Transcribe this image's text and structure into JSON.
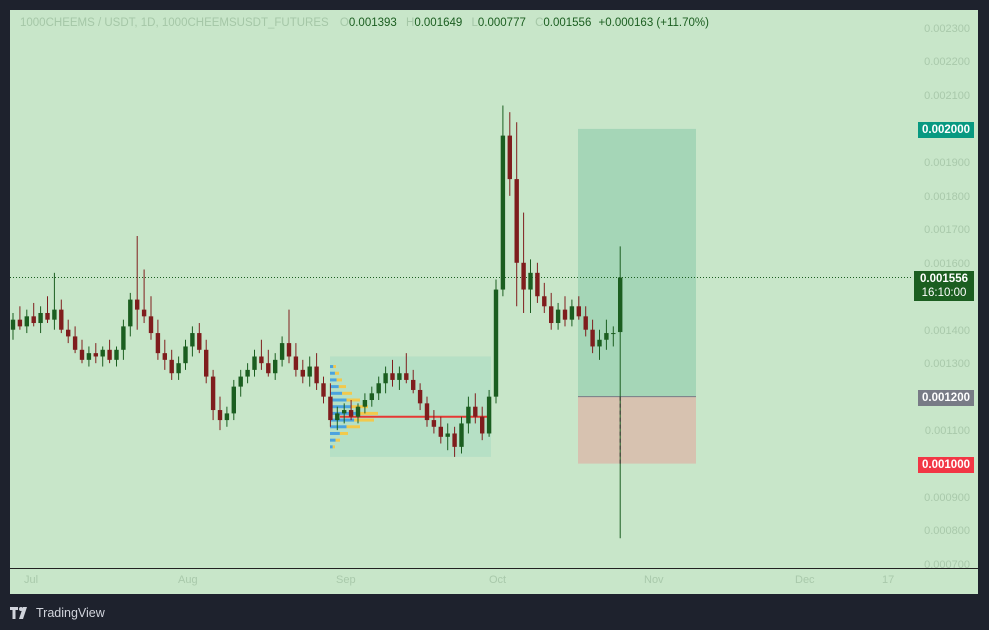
{
  "legend": {
    "symbol": "1000CHEEMS / USDT, 1D, 1000CHEEMSUSDT_FUTURES",
    "o_label": "O",
    "o": "0.001393",
    "h_label": "H",
    "h": "0.001649",
    "l_label": "L",
    "l": "0.000777",
    "c_label": "C",
    "c": "0.001556",
    "change": "+0.000163 (+11.70%)"
  },
  "price_axis": {
    "ticks": [
      "0.002300",
      "0.002200",
      "0.002100",
      "0.001900",
      "0.001800",
      "0.001700",
      "0.001600",
      "0.001400",
      "0.001300",
      "0.001100",
      "0.000900",
      "0.000800",
      "0.000700"
    ]
  },
  "tags": {
    "target": {
      "text": "0.002000",
      "color": "#089981"
    },
    "last": {
      "price": "0.001556",
      "countdown": "16:10:00",
      "color": "#1b5e20"
    },
    "entry": {
      "text": "0.001200",
      "color": "#787b86"
    },
    "stop": {
      "text": "0.001000",
      "color": "#f23645"
    }
  },
  "time_axis": {
    "labels": [
      "Jul",
      "Aug",
      "Sep",
      "Oct",
      "Nov",
      "Dec",
      "17"
    ]
  },
  "footer": {
    "brand": "TradingView"
  },
  "colors": {
    "background": "#c8e6c9",
    "up": "#1b5e20",
    "down": "#7f1d1d",
    "profit_zone": "#a5d6b7",
    "loss_zone": "#d7c2b0",
    "volume_profile_up": "#f2c94c",
    "volume_profile_down": "#4aa3df",
    "poc_line": "#e53935"
  },
  "chart_data": {
    "type": "candlestick",
    "title": "1000CHEEMS / USDT, 1D",
    "ylim": [
      0.0007,
      0.00235
    ],
    "last_price": 0.001556,
    "position_tool": {
      "entry": 0.0012,
      "target": 0.002,
      "stop": 0.001
    },
    "volume_profile_poc": 0.00114,
    "candles": [
      [
        0.0014,
        0.00145,
        0.00137,
        0.00143
      ],
      [
        0.00143,
        0.00147,
        0.0014,
        0.00141
      ],
      [
        0.00141,
        0.00146,
        0.00139,
        0.00144
      ],
      [
        0.00144,
        0.00148,
        0.00141,
        0.00142
      ],
      [
        0.00142,
        0.00147,
        0.00139,
        0.00145
      ],
      [
        0.00145,
        0.0015,
        0.00142,
        0.00143
      ],
      [
        0.00143,
        0.00157,
        0.0014,
        0.00146
      ],
      [
        0.00146,
        0.00149,
        0.00139,
        0.0014
      ],
      [
        0.0014,
        0.00143,
        0.00136,
        0.00138
      ],
      [
        0.00138,
        0.00141,
        0.00133,
        0.00134
      ],
      [
        0.00134,
        0.00137,
        0.0013,
        0.00131
      ],
      [
        0.00131,
        0.00135,
        0.00129,
        0.00133
      ],
      [
        0.00133,
        0.00136,
        0.0013,
        0.00132
      ],
      [
        0.00132,
        0.00135,
        0.00129,
        0.00134
      ],
      [
        0.00134,
        0.00137,
        0.0013,
        0.00131
      ],
      [
        0.00131,
        0.00135,
        0.00129,
        0.00134
      ],
      [
        0.00134,
        0.00143,
        0.00131,
        0.00141
      ],
      [
        0.00141,
        0.00151,
        0.00138,
        0.00149
      ],
      [
        0.00149,
        0.00168,
        0.0014,
        0.00146
      ],
      [
        0.00146,
        0.00158,
        0.00142,
        0.00144
      ],
      [
        0.00144,
        0.0015,
        0.00137,
        0.00139
      ],
      [
        0.00139,
        0.00143,
        0.00131,
        0.00133
      ],
      [
        0.00133,
        0.00137,
        0.00128,
        0.00131
      ],
      [
        0.00131,
        0.00134,
        0.00125,
        0.00127
      ],
      [
        0.00127,
        0.00132,
        0.00125,
        0.0013
      ],
      [
        0.0013,
        0.00137,
        0.00128,
        0.00135
      ],
      [
        0.00135,
        0.00141,
        0.00132,
        0.00139
      ],
      [
        0.00139,
        0.00142,
        0.00133,
        0.00134
      ],
      [
        0.00134,
        0.00137,
        0.00124,
        0.00126
      ],
      [
        0.00126,
        0.00128,
        0.00113,
        0.00116
      ],
      [
        0.00116,
        0.0012,
        0.0011,
        0.00113
      ],
      [
        0.00113,
        0.00117,
        0.00111,
        0.00115
      ],
      [
        0.00115,
        0.00125,
        0.00113,
        0.00123
      ],
      [
        0.00123,
        0.00128,
        0.0012,
        0.00126
      ],
      [
        0.00126,
        0.0013,
        0.00124,
        0.00128
      ],
      [
        0.00128,
        0.00134,
        0.00126,
        0.00132
      ],
      [
        0.00132,
        0.00137,
        0.00128,
        0.0013
      ],
      [
        0.0013,
        0.00134,
        0.00126,
        0.00127
      ],
      [
        0.00127,
        0.00133,
        0.00125,
        0.00131
      ],
      [
        0.00131,
        0.00138,
        0.00129,
        0.00136
      ],
      [
        0.00136,
        0.00146,
        0.0013,
        0.00132
      ],
      [
        0.00132,
        0.00136,
        0.00126,
        0.00128
      ],
      [
        0.00128,
        0.00131,
        0.00124,
        0.00126
      ],
      [
        0.00126,
        0.00132,
        0.00123,
        0.00129
      ],
      [
        0.00129,
        0.00133,
        0.00122,
        0.00124
      ],
      [
        0.00124,
        0.00126,
        0.00118,
        0.0012
      ],
      [
        0.0012,
        0.00124,
        0.00111,
        0.00113
      ],
      [
        0.00113,
        0.00117,
        0.0011,
        0.00115
      ],
      [
        0.00115,
        0.00118,
        0.00112,
        0.00116
      ],
      [
        0.00116,
        0.00119,
        0.00113,
        0.00114
      ],
      [
        0.00114,
        0.00118,
        0.00112,
        0.00117
      ],
      [
        0.00117,
        0.00121,
        0.00115,
        0.00119
      ],
      [
        0.00119,
        0.00123,
        0.00117,
        0.00121
      ],
      [
        0.00121,
        0.00126,
        0.00119,
        0.00124
      ],
      [
        0.00124,
        0.00129,
        0.00121,
        0.00127
      ],
      [
        0.00127,
        0.00131,
        0.00123,
        0.00125
      ],
      [
        0.00125,
        0.00129,
        0.00122,
        0.00127
      ],
      [
        0.00127,
        0.00133,
        0.00124,
        0.00125
      ],
      [
        0.00125,
        0.00128,
        0.00121,
        0.00122
      ],
      [
        0.00122,
        0.00124,
        0.00116,
        0.00118
      ],
      [
        0.00118,
        0.0012,
        0.00111,
        0.00113
      ],
      [
        0.00113,
        0.00116,
        0.00109,
        0.00111
      ],
      [
        0.00111,
        0.00114,
        0.00106,
        0.00108
      ],
      [
        0.00108,
        0.00112,
        0.00104,
        0.00109
      ],
      [
        0.00109,
        0.00111,
        0.00102,
        0.00105
      ],
      [
        0.00105,
        0.00114,
        0.00103,
        0.00112
      ],
      [
        0.00112,
        0.0012,
        0.00109,
        0.00117
      ],
      [
        0.00117,
        0.00121,
        0.00112,
        0.00114
      ],
      [
        0.00114,
        0.00117,
        0.00107,
        0.00109
      ],
      [
        0.00109,
        0.00122,
        0.00108,
        0.0012
      ],
      [
        0.0012,
        0.00155,
        0.00118,
        0.00152
      ],
      [
        0.00152,
        0.00207,
        0.0015,
        0.00198
      ],
      [
        0.00198,
        0.00205,
        0.0018,
        0.00185
      ],
      [
        0.00185,
        0.00202,
        0.00147,
        0.0016
      ],
      [
        0.0016,
        0.00175,
        0.00145,
        0.00152
      ],
      [
        0.00152,
        0.00161,
        0.00145,
        0.00157
      ],
      [
        0.00157,
        0.0016,
        0.00148,
        0.0015
      ],
      [
        0.0015,
        0.00154,
        0.00145,
        0.00147
      ],
      [
        0.00147,
        0.00151,
        0.0014,
        0.00142
      ],
      [
        0.00142,
        0.00148,
        0.0014,
        0.00146
      ],
      [
        0.00146,
        0.0015,
        0.00141,
        0.00143
      ],
      [
        0.00143,
        0.00149,
        0.00141,
        0.00147
      ],
      [
        0.00147,
        0.0015,
        0.00143,
        0.00144
      ],
      [
        0.00144,
        0.00147,
        0.00138,
        0.0014
      ],
      [
        0.0014,
        0.00143,
        0.00133,
        0.00135
      ],
      [
        0.00135,
        0.0014,
        0.00131,
        0.00137
      ],
      [
        0.00137,
        0.00143,
        0.00134,
        0.00139
      ],
      [
        0.00139,
        0.00141,
        0.00135,
        0.00139
      ],
      [
        0.001393,
        0.001649,
        0.000777,
        0.001556
      ]
    ]
  }
}
